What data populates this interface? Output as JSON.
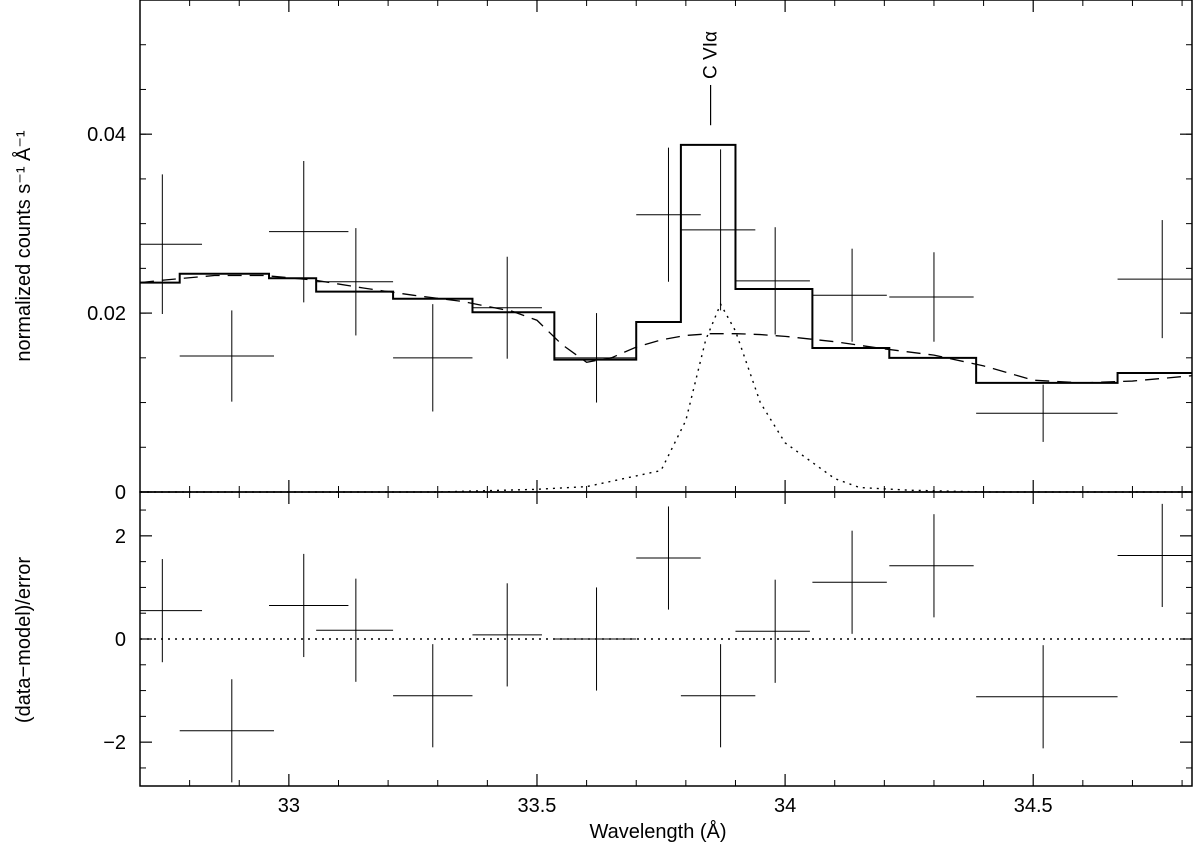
{
  "chart_data": [
    {
      "type": "line",
      "panel": "top",
      "xlabel": "",
      "ylabel": "normalized counts s⁻¹ Å⁻¹",
      "xlim": [
        32.7,
        34.82
      ],
      "ylim": [
        0,
        0.055
      ],
      "y_ticks": [
        {
          "value": 0,
          "label": "0"
        },
        {
          "value": 0.02,
          "label": "0.02"
        },
        {
          "value": 0.04,
          "label": "0.04"
        }
      ],
      "data_points": [
        {
          "x": 32.745,
          "xlo": 32.665,
          "xhi": 32.825,
          "y": 0.0277,
          "yerr": 0.0078
        },
        {
          "x": 32.885,
          "xlo": 32.78,
          "xhi": 32.97,
          "y": 0.0152,
          "yerr": 0.0051
        },
        {
          "x": 33.03,
          "xlo": 32.96,
          "xhi": 33.12,
          "y": 0.0291,
          "yerr": 0.0079
        },
        {
          "x": 33.135,
          "xlo": 33.055,
          "xhi": 33.21,
          "y": 0.0235,
          "yerr": 0.006
        },
        {
          "x": 33.29,
          "xlo": 33.21,
          "xhi": 33.37,
          "y": 0.015,
          "yerr": 0.006
        },
        {
          "x": 33.44,
          "xlo": 33.37,
          "xhi": 33.51,
          "y": 0.0206,
          "yerr": 0.0057
        },
        {
          "x": 33.62,
          "xlo": 33.535,
          "xhi": 33.7,
          "y": 0.015,
          "yerr": 0.005
        },
        {
          "x": 33.765,
          "xlo": 33.7,
          "xhi": 33.83,
          "y": 0.031,
          "yerr": 0.0075
        },
        {
          "x": 33.87,
          "xlo": 33.79,
          "xhi": 33.94,
          "y": 0.0293,
          "yerr": 0.009
        },
        {
          "x": 33.98,
          "xlo": 33.9,
          "xhi": 34.05,
          "y": 0.0236,
          "yerr": 0.006
        },
        {
          "x": 34.135,
          "xlo": 34.055,
          "xhi": 34.205,
          "y": 0.022,
          "yerr": 0.0052
        },
        {
          "x": 34.3,
          "xlo": 34.21,
          "xhi": 34.38,
          "y": 0.0218,
          "yerr": 0.005
        },
        {
          "x": 34.52,
          "xlo": 34.385,
          "xhi": 34.67,
          "y": 0.0088,
          "yerr": 0.0032
        },
        {
          "x": 34.76,
          "xlo": 34.67,
          "xhi": 34.82,
          "y": 0.0238,
          "yerr": 0.0066
        }
      ],
      "model_step": {
        "edges": [
          32.65,
          32.78,
          32.96,
          33.055,
          33.21,
          33.37,
          33.535,
          33.7,
          33.79,
          33.9,
          34.055,
          34.21,
          34.385,
          34.67,
          34.84
        ],
        "values": [
          0.0234,
          0.0244,
          0.0239,
          0.0224,
          0.0216,
          0.0201,
          0.0148,
          0.019,
          0.0388,
          0.0227,
          0.0161,
          0.015,
          0.0122,
          0.0133
        ]
      },
      "continuum_dashed": {
        "x": [
          32.65,
          32.75,
          32.85,
          32.95,
          33.05,
          33.15,
          33.25,
          33.35,
          33.45,
          33.5,
          33.55,
          33.6,
          33.65,
          33.7,
          33.75,
          33.8,
          33.85,
          33.9,
          33.95,
          34.0,
          34.1,
          34.2,
          34.3,
          34.4,
          34.5,
          34.6,
          34.7,
          34.82
        ],
        "y": [
          0.0234,
          0.0237,
          0.0242,
          0.0242,
          0.0237,
          0.0228,
          0.022,
          0.0213,
          0.0202,
          0.0192,
          0.0165,
          0.0145,
          0.015,
          0.0162,
          0.017,
          0.0175,
          0.0177,
          0.0177,
          0.0176,
          0.0174,
          0.0168,
          0.016,
          0.0153,
          0.0141,
          0.0125,
          0.0122,
          0.0124,
          0.013
        ]
      },
      "line_dotted": {
        "x": [
          32.65,
          33.0,
          33.3,
          33.5,
          33.6,
          33.65,
          33.7,
          33.75,
          33.8,
          33.84,
          33.87,
          33.9,
          33.95,
          34.0,
          34.05,
          34.1,
          34.15,
          34.25,
          34.4,
          34.82
        ],
        "y": [
          0,
          0,
          0,
          0.0003,
          0.0006,
          0.0012,
          0.0018,
          0.0024,
          0.008,
          0.017,
          0.021,
          0.018,
          0.01,
          0.0055,
          0.0035,
          0.0015,
          0.0005,
          0.0002,
          0,
          0
        ]
      },
      "annotation": {
        "text": "C VIα",
        "x": 33.87,
        "y_bottom": 0.041,
        "y_top": 0.0455
      }
    },
    {
      "type": "scatter",
      "panel": "bottom",
      "xlabel": "Wavelength (Å)",
      "ylabel": "(data−model)/error",
      "xlim": [
        32.7,
        34.82
      ],
      "ylim": [
        -2.85,
        2.85
      ],
      "y_ticks": [
        {
          "value": -2,
          "label": "−2"
        },
        {
          "value": 0,
          "label": "0"
        },
        {
          "value": 2,
          "label": "2"
        }
      ],
      "x_ticks": [
        {
          "value": 33,
          "label": "33"
        },
        {
          "value": 33.5,
          "label": "33.5"
        },
        {
          "value": 34,
          "label": "34"
        },
        {
          "value": 34.5,
          "label": "34.5"
        }
      ],
      "data_points": [
        {
          "x": 32.745,
          "xlo": 32.665,
          "xhi": 32.825,
          "y": 0.55
        },
        {
          "x": 32.885,
          "xlo": 32.78,
          "xhi": 32.97,
          "y": -1.78
        },
        {
          "x": 33.03,
          "xlo": 32.96,
          "xhi": 33.12,
          "y": 0.65
        },
        {
          "x": 33.135,
          "xlo": 33.055,
          "xhi": 33.21,
          "y": 0.17
        },
        {
          "x": 33.29,
          "xlo": 33.21,
          "xhi": 33.37,
          "y": -1.1
        },
        {
          "x": 33.44,
          "xlo": 33.37,
          "xhi": 33.51,
          "y": 0.08
        },
        {
          "x": 33.62,
          "xlo": 33.535,
          "xhi": 33.7,
          "y": 0.0
        },
        {
          "x": 33.765,
          "xlo": 33.7,
          "xhi": 33.83,
          "y": 1.57
        },
        {
          "x": 33.87,
          "xlo": 33.79,
          "xhi": 33.94,
          "y": -1.1
        },
        {
          "x": 33.98,
          "xlo": 33.9,
          "xhi": 34.05,
          "y": 0.15
        },
        {
          "x": 34.135,
          "xlo": 34.055,
          "xhi": 34.205,
          "y": 1.1
        },
        {
          "x": 34.3,
          "xlo": 34.21,
          "xhi": 34.38,
          "y": 1.42
        },
        {
          "x": 34.52,
          "xlo": 34.385,
          "xhi": 34.67,
          "y": -1.12
        },
        {
          "x": 34.76,
          "xlo": 34.67,
          "xhi": 34.82,
          "y": 1.62
        }
      ],
      "zero_line": {
        "y": 0,
        "style": "dotted"
      }
    }
  ]
}
